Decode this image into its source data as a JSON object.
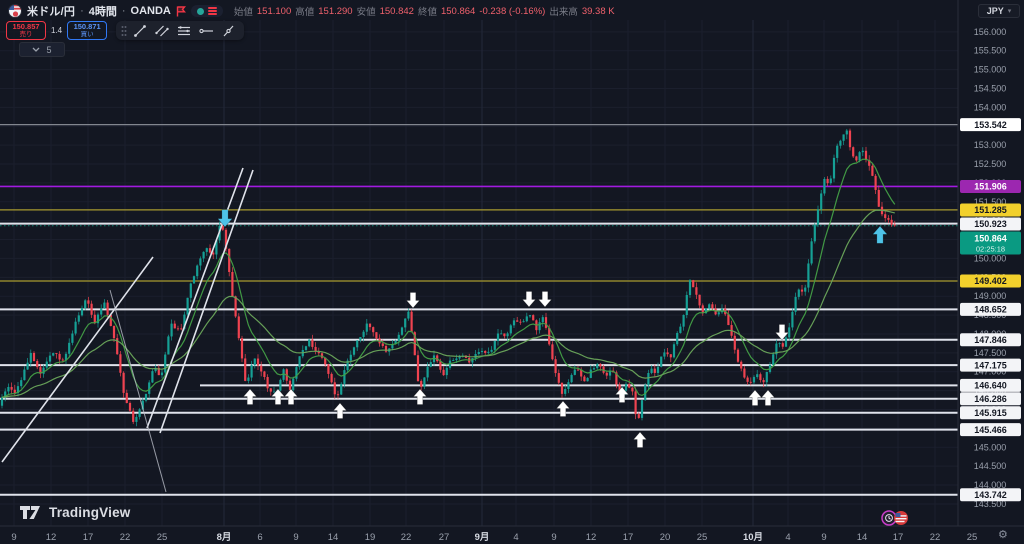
{
  "header": {
    "symbol": "米ドル/円",
    "dot": "·",
    "timeframe": "4時間",
    "exchange": "OANDA",
    "ohlc": {
      "open_label": "始値",
      "open": "151.100",
      "high_label": "高値",
      "high": "151.290",
      "low_label": "安値",
      "low": "150.842",
      "close_label": "終値",
      "close": "150.864",
      "change": "-0.238 (-0.16%)",
      "volume_label": "出来高",
      "volume": "39.38 K"
    },
    "sell_button": {
      "price": "150.857",
      "label": "売り"
    },
    "spread": "1.4",
    "buy_button": {
      "price": "150.871",
      "label": "買い"
    },
    "indicator_chip": "5"
  },
  "price_axis": {
    "currency": "JPY"
  },
  "watermark": "TradingView",
  "colors": {
    "background": "#131722",
    "grid": "#1b1f2d",
    "grid_major": "#232839",
    "up_candle": "#16a095",
    "down_candle": "#ef4350",
    "ma_fast": "#43a047",
    "ma_slow": "#6aa65b",
    "white_line": "#e0e3eb",
    "gray_line": "#82868f",
    "yellow_line": "#a79a2f",
    "yellow_label": "#f2d02c",
    "purple_line": "#a21ae0",
    "purple_label": "#9c27b0",
    "current_price": "#0a9a82",
    "axis_text": "#9aa0ac",
    "axis_text_major": "#d6dae2",
    "cyan_arrow": "#4ec3e8",
    "white_arrow": "#ffffff"
  },
  "chart_data": {
    "type": "candlestick",
    "title": "米ドル/円 4時間 OANDA",
    "ylim": [
      143.5,
      156.2
    ],
    "current_bar": {
      "open": 151.1,
      "high": 151.29,
      "low": 150.842,
      "close": 150.864,
      "change": -0.238,
      "change_pct": "-0.16%",
      "volume": "39.38 K"
    },
    "current_price": {
      "value": 150.864,
      "label": "150.864",
      "countdown": "02:25:18"
    },
    "price_ticks": [
      "156.000",
      "155.500",
      "155.000",
      "154.500",
      "154.000",
      "153.500",
      "153.000",
      "152.500",
      "152.000",
      "151.500",
      "151.000",
      "150.500",
      "150.000",
      "149.500",
      "149.000",
      "148.500",
      "148.000",
      "147.500",
      "147.000",
      "146.500",
      "146.000",
      "145.500",
      "145.000",
      "144.500",
      "144.000",
      "143.500"
    ],
    "time_ticks": [
      {
        "label": "9",
        "x": 14
      },
      {
        "label": "12",
        "x": 51
      },
      {
        "label": "17",
        "x": 88
      },
      {
        "label": "22",
        "x": 125
      },
      {
        "label": "25",
        "x": 162
      },
      {
        "label": "8月",
        "x": 224,
        "major": true
      },
      {
        "label": "6",
        "x": 260
      },
      {
        "label": "9",
        "x": 296
      },
      {
        "label": "14",
        "x": 333
      },
      {
        "label": "19",
        "x": 370
      },
      {
        "label": "22",
        "x": 406
      },
      {
        "label": "27",
        "x": 444
      },
      {
        "label": "9月",
        "x": 482,
        "major": true
      },
      {
        "label": "4",
        "x": 516
      },
      {
        "label": "9",
        "x": 554
      },
      {
        "label": "12",
        "x": 591
      },
      {
        "label": "17",
        "x": 628
      },
      {
        "label": "20",
        "x": 665
      },
      {
        "label": "25",
        "x": 702
      },
      {
        "label": "10月",
        "x": 753,
        "major": true
      },
      {
        "label": "4",
        "x": 788
      },
      {
        "label": "9",
        "x": 824
      },
      {
        "label": "14",
        "x": 862
      },
      {
        "label": "17",
        "x": 898
      },
      {
        "label": "22",
        "x": 935
      },
      {
        "label": "25",
        "x": 972
      }
    ],
    "levels": [
      {
        "value": 153.542,
        "label": "153.542",
        "style": "gray",
        "label_bg": "#ffffff",
        "label_fg": "#131722"
      },
      {
        "value": 151.906,
        "label": "151.906",
        "style": "purple",
        "label_bg": "#9c27b0",
        "label_fg": "#ffffff"
      },
      {
        "value": 151.285,
        "label": "151.285",
        "style": "yellow",
        "label_bg": "#f2d02c",
        "label_fg": "#131722",
        "label_y": 210
      },
      {
        "value": 150.923,
        "label": "150.923",
        "style": "white",
        "label_bg": "#f3f4f7",
        "label_fg": "#131722",
        "label_y": 224
      },
      {
        "value": 149.402,
        "label": "149.402",
        "style": "yellow",
        "label_bg": "#f2d02c",
        "label_fg": "#131722"
      },
      {
        "value": 148.652,
        "label": "148.652",
        "style": "white",
        "label_bg": "#f3f4f7",
        "label_fg": "#131722"
      },
      {
        "value": 147.846,
        "label": "147.846",
        "style": "white",
        "label_bg": "#f3f4f7",
        "label_fg": "#131722",
        "x_start": 240
      },
      {
        "value": 147.175,
        "label": "147.175",
        "style": "white",
        "label_bg": "#f3f4f7",
        "label_fg": "#131722"
      },
      {
        "value": 146.64,
        "label": "146.640",
        "style": "white",
        "label_bg": "#f3f4f7",
        "label_fg": "#131722",
        "x_start": 200
      },
      {
        "value": 146.286,
        "label": "146.286",
        "style": "white",
        "label_bg": "#f3f4f7",
        "label_fg": "#131722"
      },
      {
        "value": 145.915,
        "label": "145.915",
        "style": "white",
        "label_bg": "#f3f4f7",
        "label_fg": "#131722"
      },
      {
        "value": 145.466,
        "label": "145.466",
        "style": "white",
        "label_bg": "#f3f4f7",
        "label_fg": "#131722"
      },
      {
        "value": 143.742,
        "label": "143.742",
        "style": "white",
        "label_bg": "#f3f4f7",
        "label_fg": "#131722"
      }
    ],
    "arrows": [
      {
        "dir": "down",
        "color": "cyan",
        "x": 225,
        "tip_y": 227
      },
      {
        "dir": "up",
        "color": "cyan",
        "x": 880,
        "tip_y": 226
      },
      {
        "dir": "down",
        "color": "white",
        "x": 413,
        "tip_y": 308
      },
      {
        "dir": "down",
        "color": "white",
        "x": 529,
        "tip_y": 307
      },
      {
        "dir": "down",
        "color": "white",
        "x": 545,
        "tip_y": 307
      },
      {
        "dir": "down",
        "color": "white",
        "x": 782,
        "tip_y": 340
      },
      {
        "dir": "up",
        "color": "white",
        "x": 250,
        "tip_y": 389
      },
      {
        "dir": "up",
        "color": "white",
        "x": 278,
        "tip_y": 389
      },
      {
        "dir": "up",
        "color": "white",
        "x": 291,
        "tip_y": 389
      },
      {
        "dir": "up",
        "color": "white",
        "x": 340,
        "tip_y": 403
      },
      {
        "dir": "up",
        "color": "white",
        "x": 420,
        "tip_y": 389
      },
      {
        "dir": "up",
        "color": "white",
        "x": 563,
        "tip_y": 401
      },
      {
        "dir": "up",
        "color": "white",
        "x": 622,
        "tip_y": 387
      },
      {
        "dir": "up",
        "color": "white",
        "x": 640,
        "tip_y": 432
      },
      {
        "dir": "up",
        "color": "white",
        "x": 755,
        "tip_y": 390
      },
      {
        "dir": "up",
        "color": "white",
        "x": 768,
        "tip_y": 390
      }
    ],
    "trendlines": [
      {
        "x1": 2,
        "y1": 462,
        "x2": 153,
        "y2": 257,
        "w": 1.6
      },
      {
        "x1": 147,
        "y1": 428,
        "x2": 243,
        "y2": 168,
        "w": 1.6
      },
      {
        "x1": 160,
        "y1": 433,
        "x2": 253,
        "y2": 170,
        "w": 1.6
      },
      {
        "x1": 110,
        "y1": 290,
        "x2": 166,
        "y2": 492,
        "w": 1.0,
        "dim": true
      }
    ],
    "ma_periods": [
      10,
      32
    ],
    "price_path": [
      [
        0,
        146.1
      ],
      [
        8,
        146.6
      ],
      [
        18,
        146.45
      ],
      [
        32,
        147.5
      ],
      [
        42,
        146.9
      ],
      [
        55,
        147.55
      ],
      [
        65,
        147.25
      ],
      [
        78,
        148.35
      ],
      [
        88,
        149.0
      ],
      [
        96,
        148.25
      ],
      [
        106,
        148.85
      ],
      [
        116,
        147.9
      ],
      [
        126,
        146.3
      ],
      [
        136,
        145.62
      ],
      [
        146,
        146.3
      ],
      [
        155,
        147.15
      ],
      [
        163,
        146.85
      ],
      [
        172,
        148.3
      ],
      [
        182,
        148.05
      ],
      [
        192,
        149.3
      ],
      [
        200,
        149.9
      ],
      [
        208,
        150.25
      ],
      [
        215,
        150.1
      ],
      [
        219,
        150.6
      ],
      [
        222,
        150.95
      ],
      [
        226,
        150.55
      ],
      [
        231,
        149.6
      ],
      [
        238,
        148.3
      ],
      [
        248,
        146.6
      ],
      [
        255,
        147.35
      ],
      [
        262,
        147.1
      ],
      [
        270,
        146.55
      ],
      [
        278,
        146.45
      ],
      [
        285,
        147.05
      ],
      [
        292,
        146.5
      ],
      [
        300,
        147.3
      ],
      [
        310,
        147.85
      ],
      [
        318,
        147.55
      ],
      [
        328,
        147.15
      ],
      [
        338,
        146.25
      ],
      [
        348,
        147.2
      ],
      [
        358,
        147.75
      ],
      [
        370,
        148.3
      ],
      [
        378,
        147.85
      ],
      [
        388,
        147.55
      ],
      [
        398,
        147.85
      ],
      [
        410,
        148.6
      ],
      [
        417,
        147.3
      ],
      [
        421,
        146.4
      ],
      [
        428,
        147.05
      ],
      [
        436,
        147.5
      ],
      [
        444,
        146.85
      ],
      [
        452,
        147.3
      ],
      [
        462,
        147.45
      ],
      [
        472,
        147.25
      ],
      [
        482,
        147.6
      ],
      [
        492,
        147.45
      ],
      [
        500,
        148.05
      ],
      [
        508,
        147.95
      ],
      [
        516,
        148.4
      ],
      [
        524,
        148.25
      ],
      [
        531,
        148.58
      ],
      [
        538,
        148.1
      ],
      [
        545,
        148.5
      ],
      [
        552,
        147.6
      ],
      [
        558,
        146.9
      ],
      [
        564,
        146.35
      ],
      [
        572,
        146.85
      ],
      [
        578,
        147.1
      ],
      [
        585,
        146.7
      ],
      [
        592,
        147.0
      ],
      [
        600,
        147.2
      ],
      [
        607,
        146.85
      ],
      [
        614,
        147.05
      ],
      [
        621,
        146.35
      ],
      [
        628,
        146.7
      ],
      [
        634,
        146.45
      ],
      [
        639,
        145.5
      ],
      [
        645,
        146.5
      ],
      [
        652,
        147.15
      ],
      [
        658,
        146.95
      ],
      [
        665,
        147.55
      ],
      [
        672,
        147.35
      ],
      [
        679,
        148.0
      ],
      [
        685,
        148.45
      ],
      [
        691,
        149.5
      ],
      [
        697,
        149.15
      ],
      [
        704,
        148.5
      ],
      [
        710,
        148.85
      ],
      [
        717,
        148.55
      ],
      [
        724,
        148.7
      ],
      [
        731,
        148.15
      ],
      [
        737,
        147.5
      ],
      [
        744,
        146.95
      ],
      [
        751,
        146.65
      ],
      [
        758,
        146.95
      ],
      [
        765,
        146.7
      ],
      [
        772,
        147.25
      ],
      [
        779,
        147.8
      ],
      [
        785,
        147.6
      ],
      [
        792,
        148.35
      ],
      [
        799,
        149.2
      ],
      [
        806,
        149.05
      ],
      [
        812,
        150.3
      ],
      [
        819,
        151.2
      ],
      [
        825,
        152.1
      ],
      [
        831,
        151.9
      ],
      [
        837,
        152.9
      ],
      [
        843,
        153.2
      ],
      [
        848,
        153.45
      ],
      [
        853,
        152.75
      ],
      [
        858,
        152.55
      ],
      [
        863,
        153.0
      ],
      [
        869,
        152.55
      ],
      [
        875,
        152.1
      ],
      [
        881,
        151.3
      ],
      [
        887,
        151.1
      ],
      [
        891,
        150.95
      ],
      [
        895,
        150.864
      ]
    ]
  }
}
